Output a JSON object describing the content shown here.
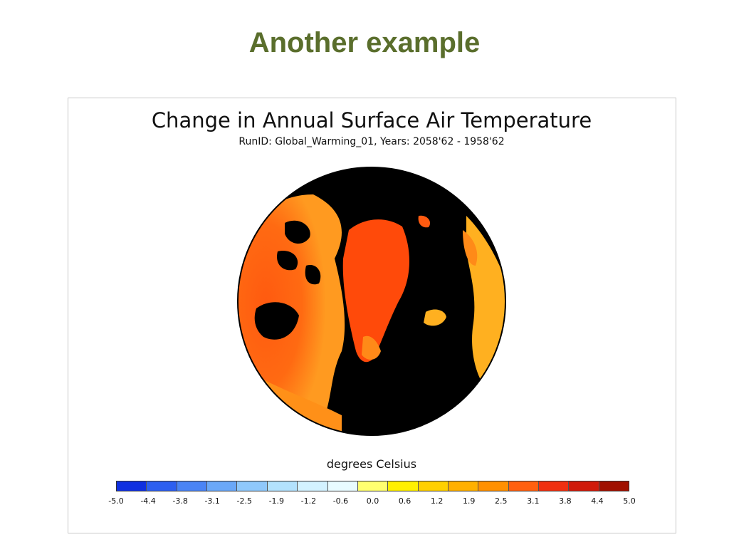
{
  "slide": {
    "title": "Another example"
  },
  "figure": {
    "title": "Change in Annual Surface Air Temperature",
    "subtitle": "RunID: Global_Warming_01, Years: 2058'62 - 1958'62",
    "units": "degrees Celsius",
    "colorbar": {
      "colors": [
        "#1030e0",
        "#2d5ff0",
        "#4a84f5",
        "#6aa8f8",
        "#8fc8fb",
        "#b3e2fd",
        "#d3f2ff",
        "#e8fbff",
        "#ffff70",
        "#fff000",
        "#ffd000",
        "#ffb000",
        "#ff9000",
        "#ff6010",
        "#f03010",
        "#d01a0a",
        "#a01000"
      ],
      "tick_labels": [
        "-5.0",
        "-4.4",
        "-3.8",
        "-3.1",
        "-2.5",
        "-1.9",
        "-1.2",
        "-0.6",
        "0.0",
        "0.6",
        "1.2",
        "1.9",
        "2.5",
        "3.1",
        "3.8",
        "4.4",
        "5.0"
      ]
    }
  }
}
